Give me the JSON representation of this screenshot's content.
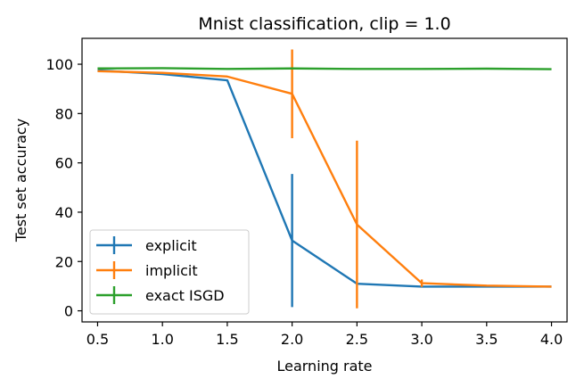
{
  "chart_data": {
    "type": "line",
    "title": "Mnist classification, clip = 1.0",
    "xlabel": "Learning rate",
    "ylabel": "Test set accuracy",
    "xlim": [
      0.38,
      4.12
    ],
    "ylim": [
      -4.5,
      110.5
    ],
    "xticks": [
      0.5,
      1.0,
      1.5,
      2.0,
      2.5,
      3.0,
      3.5,
      4.0
    ],
    "xtick_labels": [
      "0.5",
      "1.0",
      "1.5",
      "2.0",
      "2.5",
      "3.0",
      "3.5",
      "4.0"
    ],
    "yticks": [
      0,
      20,
      40,
      60,
      80,
      100
    ],
    "ytick_labels": [
      "0",
      "20",
      "40",
      "60",
      "80",
      "100"
    ],
    "grid": false,
    "legend_position": "lower-left",
    "x": [
      0.5,
      1.0,
      1.5,
      2.0,
      2.5,
      3.0,
      3.5,
      4.0
    ],
    "series": [
      {
        "name": "explicit",
        "color": "#1f77b4",
        "values": [
          97.5,
          96.0,
          93.5,
          28.5,
          11.0,
          9.8,
          9.8,
          9.8
        ],
        "errors": [
          0,
          0,
          0,
          27,
          0,
          0,
          0,
          0
        ]
      },
      {
        "name": "implicit",
        "color": "#ff7f0e",
        "values": [
          97.2,
          96.5,
          95.0,
          88.0,
          35.0,
          11.2,
          10.2,
          9.8
        ],
        "errors": [
          0,
          0,
          0,
          18,
          34,
          1.5,
          0,
          0
        ]
      },
      {
        "name": "exact ISGD",
        "color": "#2ca02c",
        "values": [
          98.3,
          98.4,
          98.1,
          98.3,
          98.1,
          98.1,
          98.2,
          98.0
        ],
        "errors": [
          0,
          0,
          0,
          0,
          0,
          0,
          0,
          0
        ]
      }
    ]
  }
}
